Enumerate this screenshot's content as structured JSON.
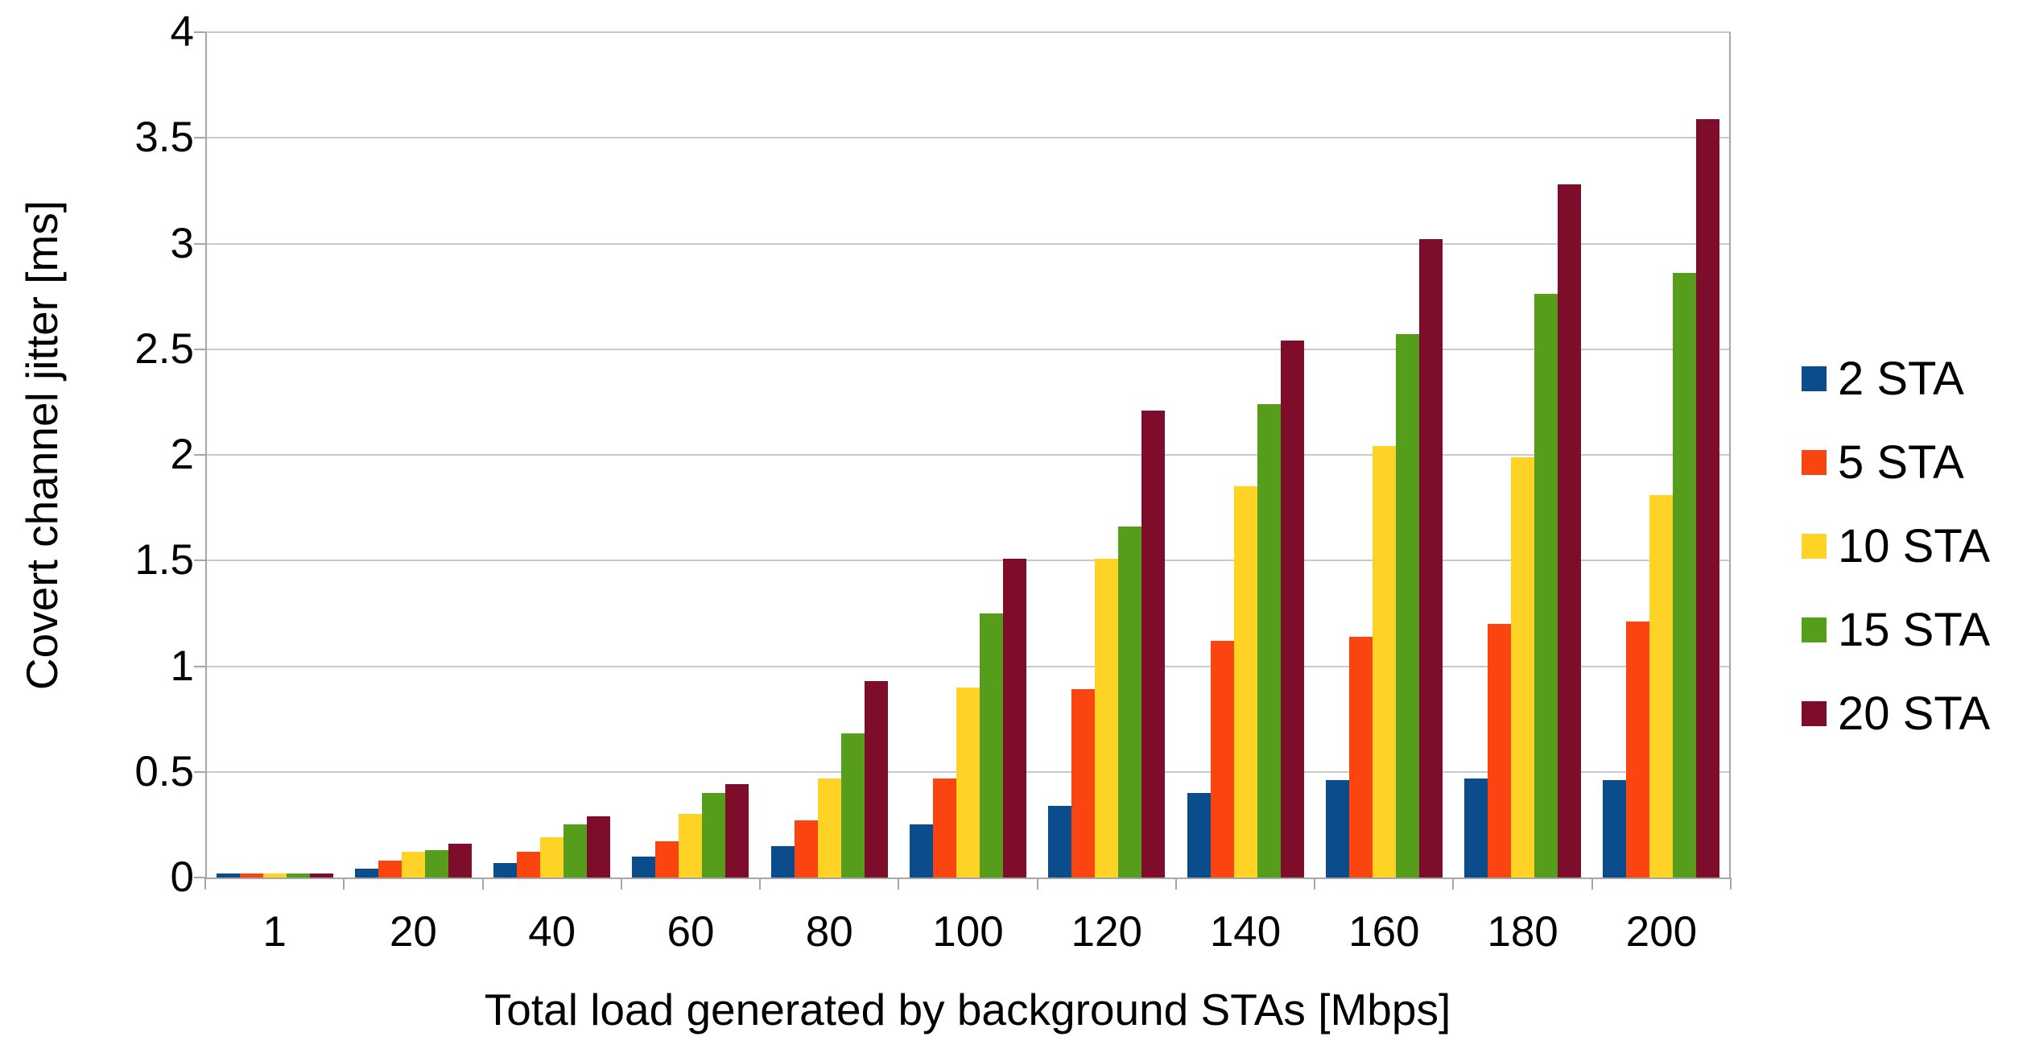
{
  "chart_data": {
    "type": "bar",
    "title": "",
    "xlabel": "Total load generated by background STAs [Mbps]",
    "ylabel": "Covert channel jitter [ms]",
    "categories": [
      "1",
      "20",
      "40",
      "60",
      "80",
      "100",
      "120",
      "140",
      "160",
      "180",
      "200"
    ],
    "series": [
      {
        "name": "2 STA",
        "color": "#0b4d8c",
        "values": [
          0.02,
          0.04,
          0.07,
          0.1,
          0.15,
          0.25,
          0.34,
          0.4,
          0.46,
          0.47,
          0.46
        ]
      },
      {
        "name": "5 STA",
        "color": "#fb4511",
        "values": [
          0.02,
          0.08,
          0.12,
          0.17,
          0.27,
          0.47,
          0.89,
          1.12,
          1.14,
          1.2,
          1.21
        ]
      },
      {
        "name": "10 STA",
        "color": "#ffd226",
        "values": [
          0.02,
          0.12,
          0.19,
          0.3,
          0.47,
          0.9,
          1.51,
          1.85,
          2.04,
          1.99,
          1.81
        ]
      },
      {
        "name": "15 STA",
        "color": "#579d1c",
        "values": [
          0.02,
          0.13,
          0.25,
          0.4,
          0.68,
          1.25,
          1.66,
          2.24,
          2.57,
          2.76,
          2.86
        ]
      },
      {
        "name": "20 STA",
        "color": "#7e0d2b",
        "values": [
          0.02,
          0.16,
          0.29,
          0.44,
          0.93,
          1.51,
          2.21,
          2.54,
          3.02,
          3.28,
          3.59
        ]
      }
    ],
    "ylim": [
      0,
      4
    ],
    "ytick_step": 0.5,
    "ytick_labels": [
      "0",
      "0.5",
      "1",
      "1.5",
      "2",
      "2.5",
      "3",
      "3.5",
      "4"
    ],
    "grid": true,
    "legend_position": "right"
  },
  "colors": {
    "grid": "#c9c9c9",
    "axis": "#a6a6a6",
    "background": "#ffffff",
    "text": "#000000"
  }
}
